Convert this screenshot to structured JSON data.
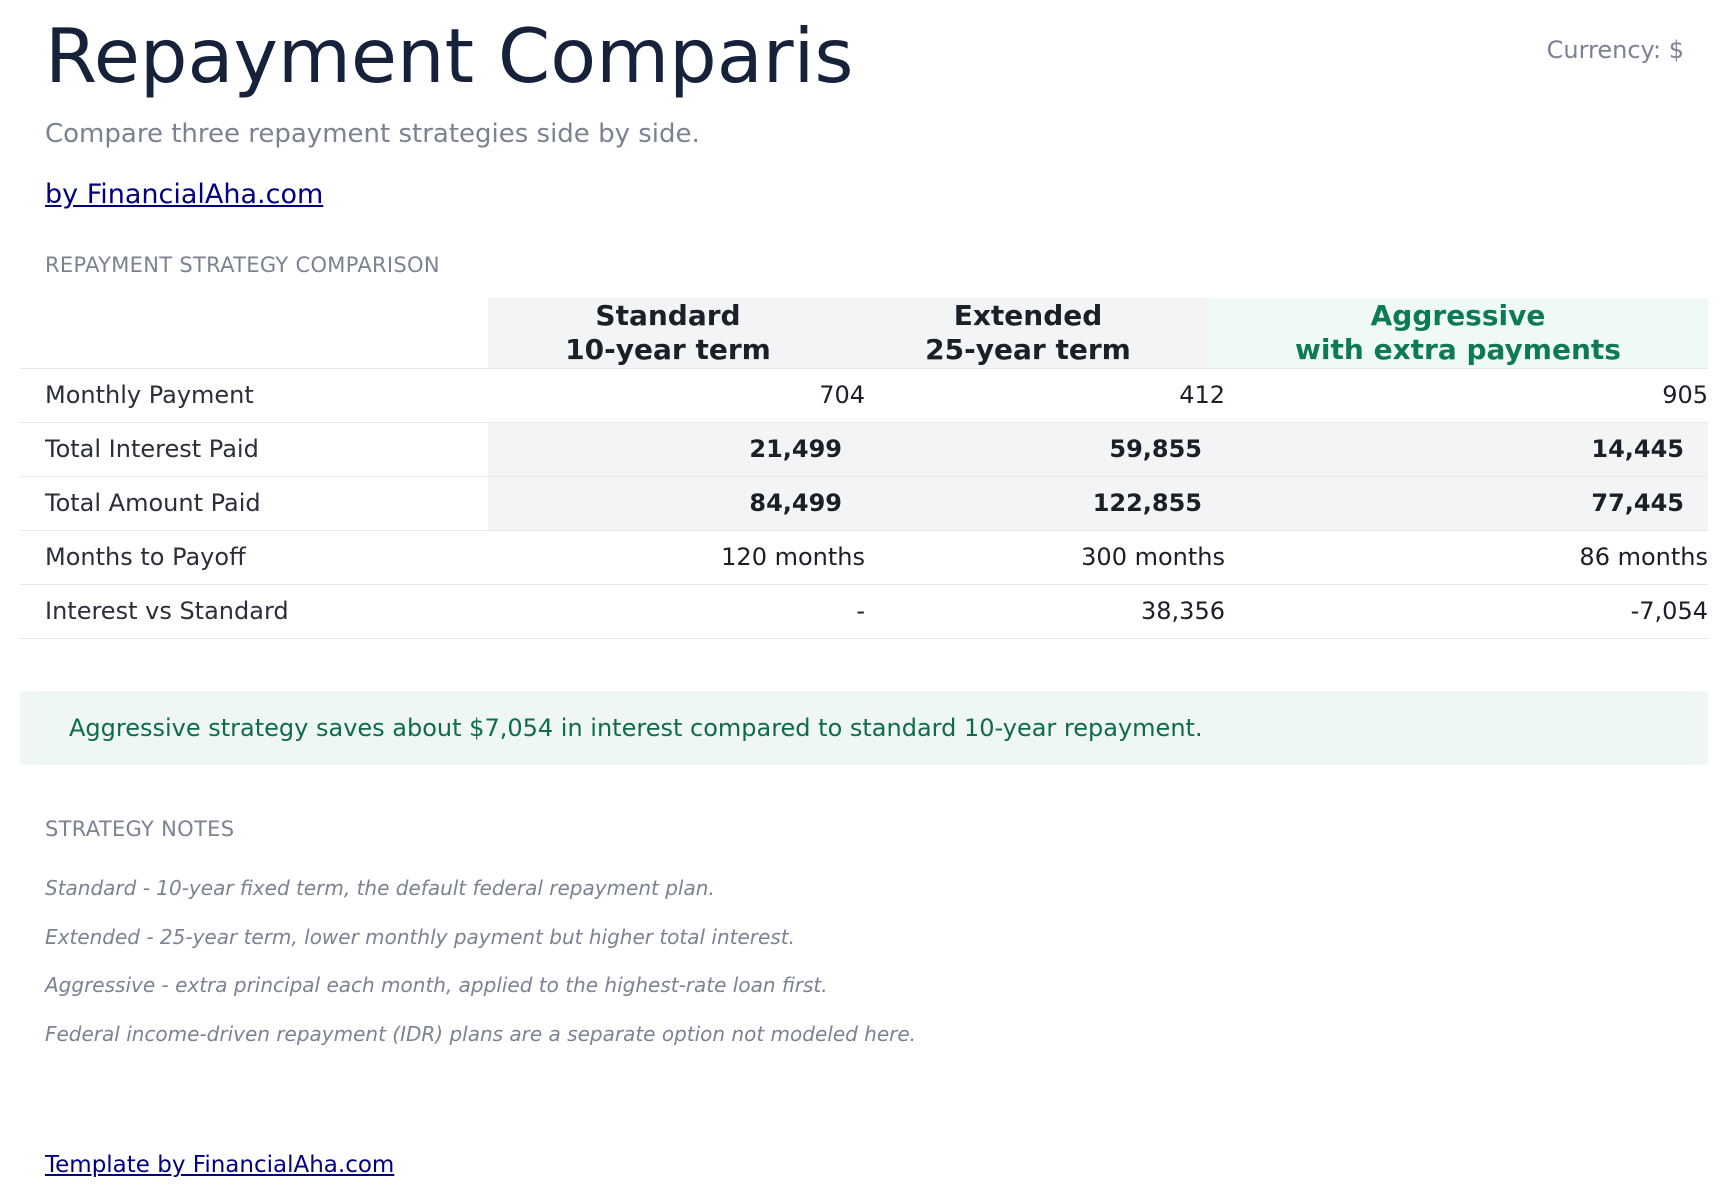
{
  "header": {
    "title": "Repayment Comparison",
    "currency": "Currency: $",
    "subtitle": "Compare three repayment strategies side by side.",
    "byline": "by FinancialAha.com"
  },
  "comparison": {
    "section_label": "REPAYMENT STRATEGY COMPARISON",
    "columns": [
      {
        "line1": "Standard",
        "line2": "10-year term"
      },
      {
        "line1": "Extended",
        "line2": "25-year term"
      },
      {
        "line1": "Aggressive",
        "line2": "with extra payments"
      }
    ],
    "rows": [
      {
        "label": "Monthly Payment",
        "values": [
          "704",
          "412",
          "905"
        ]
      },
      {
        "label": "Total Interest Paid",
        "values": [
          "21,499",
          "59,855",
          "14,445"
        ]
      },
      {
        "label": "Total Amount Paid",
        "values": [
          "84,499",
          "122,855",
          "77,445"
        ]
      },
      {
        "label": "Months to Payoff",
        "values": [
          "120 months",
          "300 months",
          "86 months"
        ]
      },
      {
        "label": "Interest vs Standard",
        "values": [
          "-",
          "38,356",
          "-7,054"
        ]
      }
    ],
    "callout": "Aggressive strategy saves about $7,054 in interest compared to standard 10-year repayment.",
    "highlight_color": "#0e7a55"
  },
  "notes": {
    "section_label": "STRATEGY NOTES",
    "items": [
      "Standard - 10-year fixed term, the default federal repayment plan.",
      "Extended - 25-year term, lower monthly payment but higher total interest.",
      "Aggressive - extra principal each month, applied to the highest-rate loan first.",
      "Federal income-driven repayment (IDR) plans are a separate option not modeled here."
    ]
  },
  "footer": {
    "link": "Template by FinancialAha.com"
  }
}
